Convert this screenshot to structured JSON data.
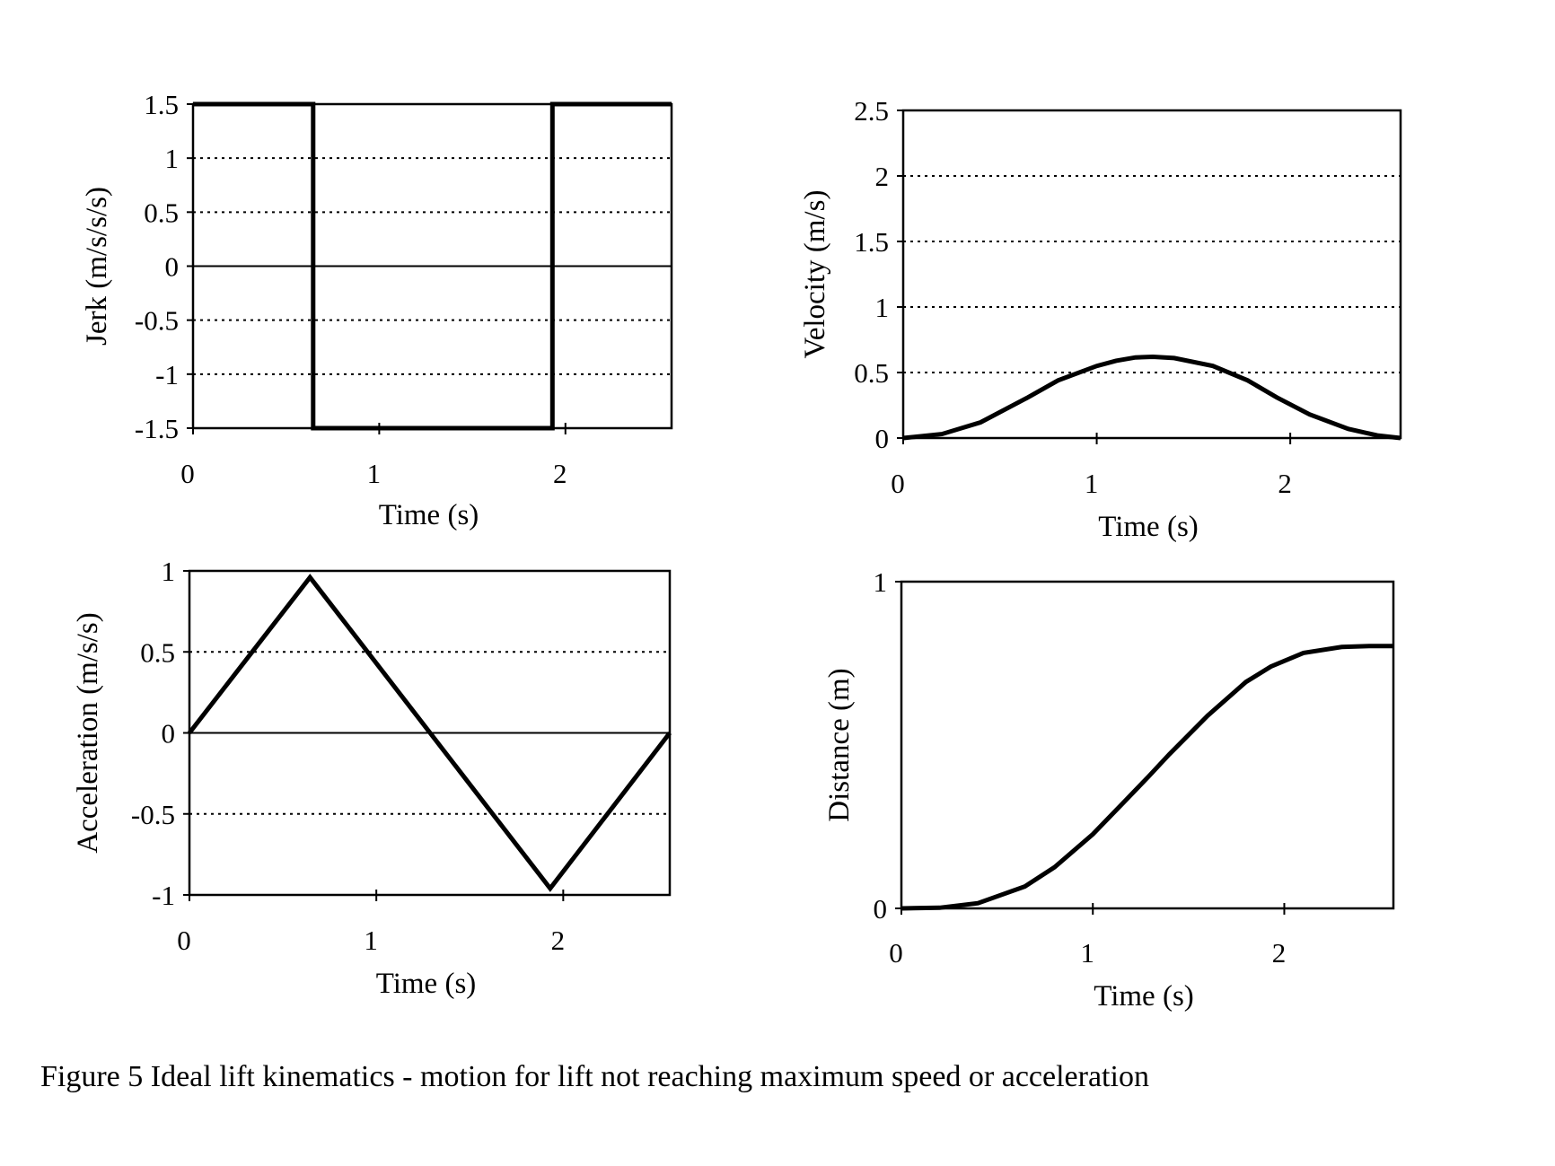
{
  "caption": "Figure 5 Ideal lift kinematics - motion for lift not reaching maximum speed or acceleration",
  "chart_data": [
    {
      "id": "jerk",
      "type": "line",
      "title": "",
      "xlabel": "Time (s)",
      "ylabel": "Jerk (m/s/s/s)",
      "xlim": [
        0,
        2.57
      ],
      "ylim": [
        -1.5,
        1.5
      ],
      "xticks": [
        0,
        1,
        2
      ],
      "xtick_labels": [
        "0",
        "1",
        "2"
      ],
      "yticks": [
        1.5,
        1,
        0.5,
        0,
        -0.5,
        -1,
        -1.5
      ],
      "ytick_labels": [
        "1.5",
        "1",
        "0.5",
        "0",
        "-0.5",
        "-1",
        "-1.5"
      ],
      "grid": "horizontal-dotted",
      "line_color": "#000000",
      "x": [
        0,
        0.645,
        0.645,
        1.93,
        1.93,
        2.57
      ],
      "y": [
        1.5,
        1.5,
        -1.5,
        -1.5,
        1.5,
        1.5
      ]
    },
    {
      "id": "velocity",
      "type": "line",
      "title": "",
      "xlabel": "Time (s)",
      "ylabel": "Velocity (m/s)",
      "xlim": [
        0,
        2.57
      ],
      "ylim": [
        0,
        2.5
      ],
      "xticks": [
        0,
        1,
        2
      ],
      "xtick_labels": [
        "0",
        "1",
        "2"
      ],
      "yticks": [
        2.5,
        2,
        1.5,
        1,
        0.5,
        0
      ],
      "ytick_labels": [
        "2.5",
        "2",
        "1.5",
        "1",
        "0.5",
        "0"
      ],
      "grid": "horizontal-dotted",
      "line_color": "#000000",
      "x": [
        0,
        0.2,
        0.4,
        0.645,
        0.8,
        1.0,
        1.1,
        1.2,
        1.29,
        1.4,
        1.6,
        1.78,
        1.93,
        2.1,
        2.3,
        2.45,
        2.57
      ],
      "y": [
        0,
        0.03,
        0.12,
        0.31,
        0.44,
        0.55,
        0.59,
        0.615,
        0.62,
        0.61,
        0.55,
        0.44,
        0.31,
        0.18,
        0.07,
        0.02,
        0
      ]
    },
    {
      "id": "acceleration",
      "type": "line",
      "title": "",
      "xlabel": "Time (s)",
      "ylabel": "Acceleration (m/s/s)",
      "xlim": [
        0,
        2.57
      ],
      "ylim": [
        -1,
        1
      ],
      "xticks": [
        0,
        1,
        2
      ],
      "xtick_labels": [
        "0",
        "1",
        "2"
      ],
      "yticks": [
        1,
        0.5,
        0,
        -0.5,
        -1
      ],
      "ytick_labels": [
        "1",
        "0.5",
        "0",
        "-0.5",
        "-1"
      ],
      "grid": "horizontal-dotted",
      "line_color": "#000000",
      "x": [
        0,
        0.645,
        1.93,
        2.57
      ],
      "y": [
        0,
        0.96,
        -0.96,
        0
      ]
    },
    {
      "id": "distance",
      "type": "line",
      "title": "",
      "xlabel": "Time (s)",
      "ylabel": "Distance (m)",
      "xlim": [
        0,
        2.57
      ],
      "ylim": [
        0,
        1
      ],
      "xticks": [
        0,
        1,
        2
      ],
      "xtick_labels": [
        "0",
        "1",
        "2"
      ],
      "yticks": [
        1,
        0
      ],
      "ytick_labels": [
        "1",
        "0"
      ],
      "grid": "none",
      "line_color": "#000000",
      "x": [
        0,
        0.2,
        0.4,
        0.645,
        0.8,
        1.0,
        1.2,
        1.29,
        1.4,
        1.6,
        1.8,
        1.93,
        2.1,
        2.3,
        2.45,
        2.57
      ],
      "y": [
        0,
        0.002,
        0.016,
        0.067,
        0.126,
        0.227,
        0.348,
        0.403,
        0.472,
        0.59,
        0.693,
        0.74,
        0.782,
        0.8,
        0.803,
        0.803
      ]
    }
  ]
}
